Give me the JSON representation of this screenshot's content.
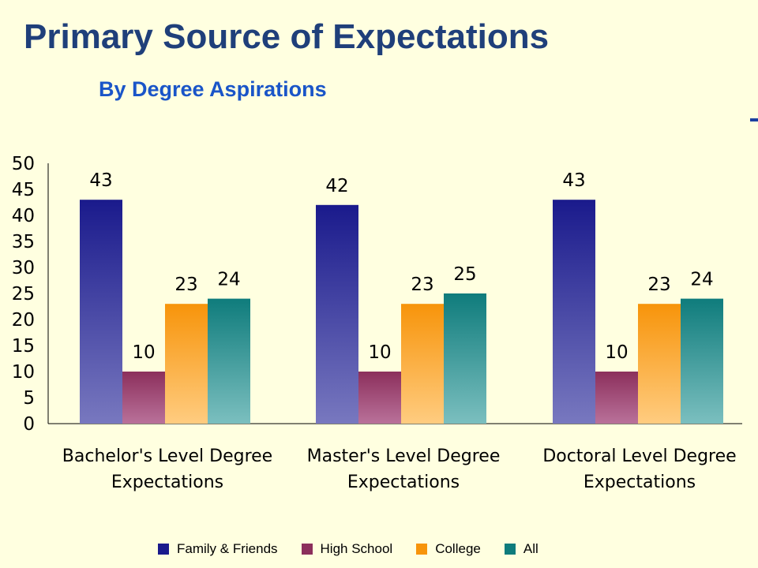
{
  "chart_data": {
    "type": "bar",
    "title": "Primary Source of Expectations",
    "subtitle": "By Degree Aspirations",
    "categories": [
      [
        "Bachelor's Level Degree",
        "Expectations"
      ],
      [
        "Master's Level Degree",
        "Expectations"
      ],
      [
        "Doctoral Level Degree",
        "Expectations"
      ]
    ],
    "series": [
      {
        "name": "Family & Friends",
        "values": [
          43,
          42,
          43
        ],
        "labels": [
          "43",
          "42",
          "43"
        ],
        "color": "#1a1a8c",
        "color_light": "#7878bf"
      },
      {
        "name": "High School",
        "values": [
          10,
          10,
          10
        ],
        "labels": [
          "10",
          "10",
          "10"
        ],
        "color": "#8c2f5c",
        "color_light": "#b9719a"
      },
      {
        "name": "College",
        "values": [
          23,
          23,
          23
        ],
        "labels": [
          "23",
          "23",
          "23"
        ],
        "color": "#f7940a",
        "color_light": "#ffcc80"
      },
      {
        "name": "All",
        "values": [
          24,
          25,
          24
        ],
        "labels": [
          "24",
          "25",
          "24"
        ],
        "color": "#0f7c7c",
        "color_light": "#7bbfbf"
      }
    ],
    "ylim": [
      0,
      50
    ],
    "yticks": [
      "0",
      "5",
      "10",
      "15",
      "20",
      "25",
      "30",
      "35",
      "40",
      "45",
      "50"
    ],
    "xlabel": "",
    "ylabel": "",
    "grid": false,
    "legend_position": "bottom"
  }
}
